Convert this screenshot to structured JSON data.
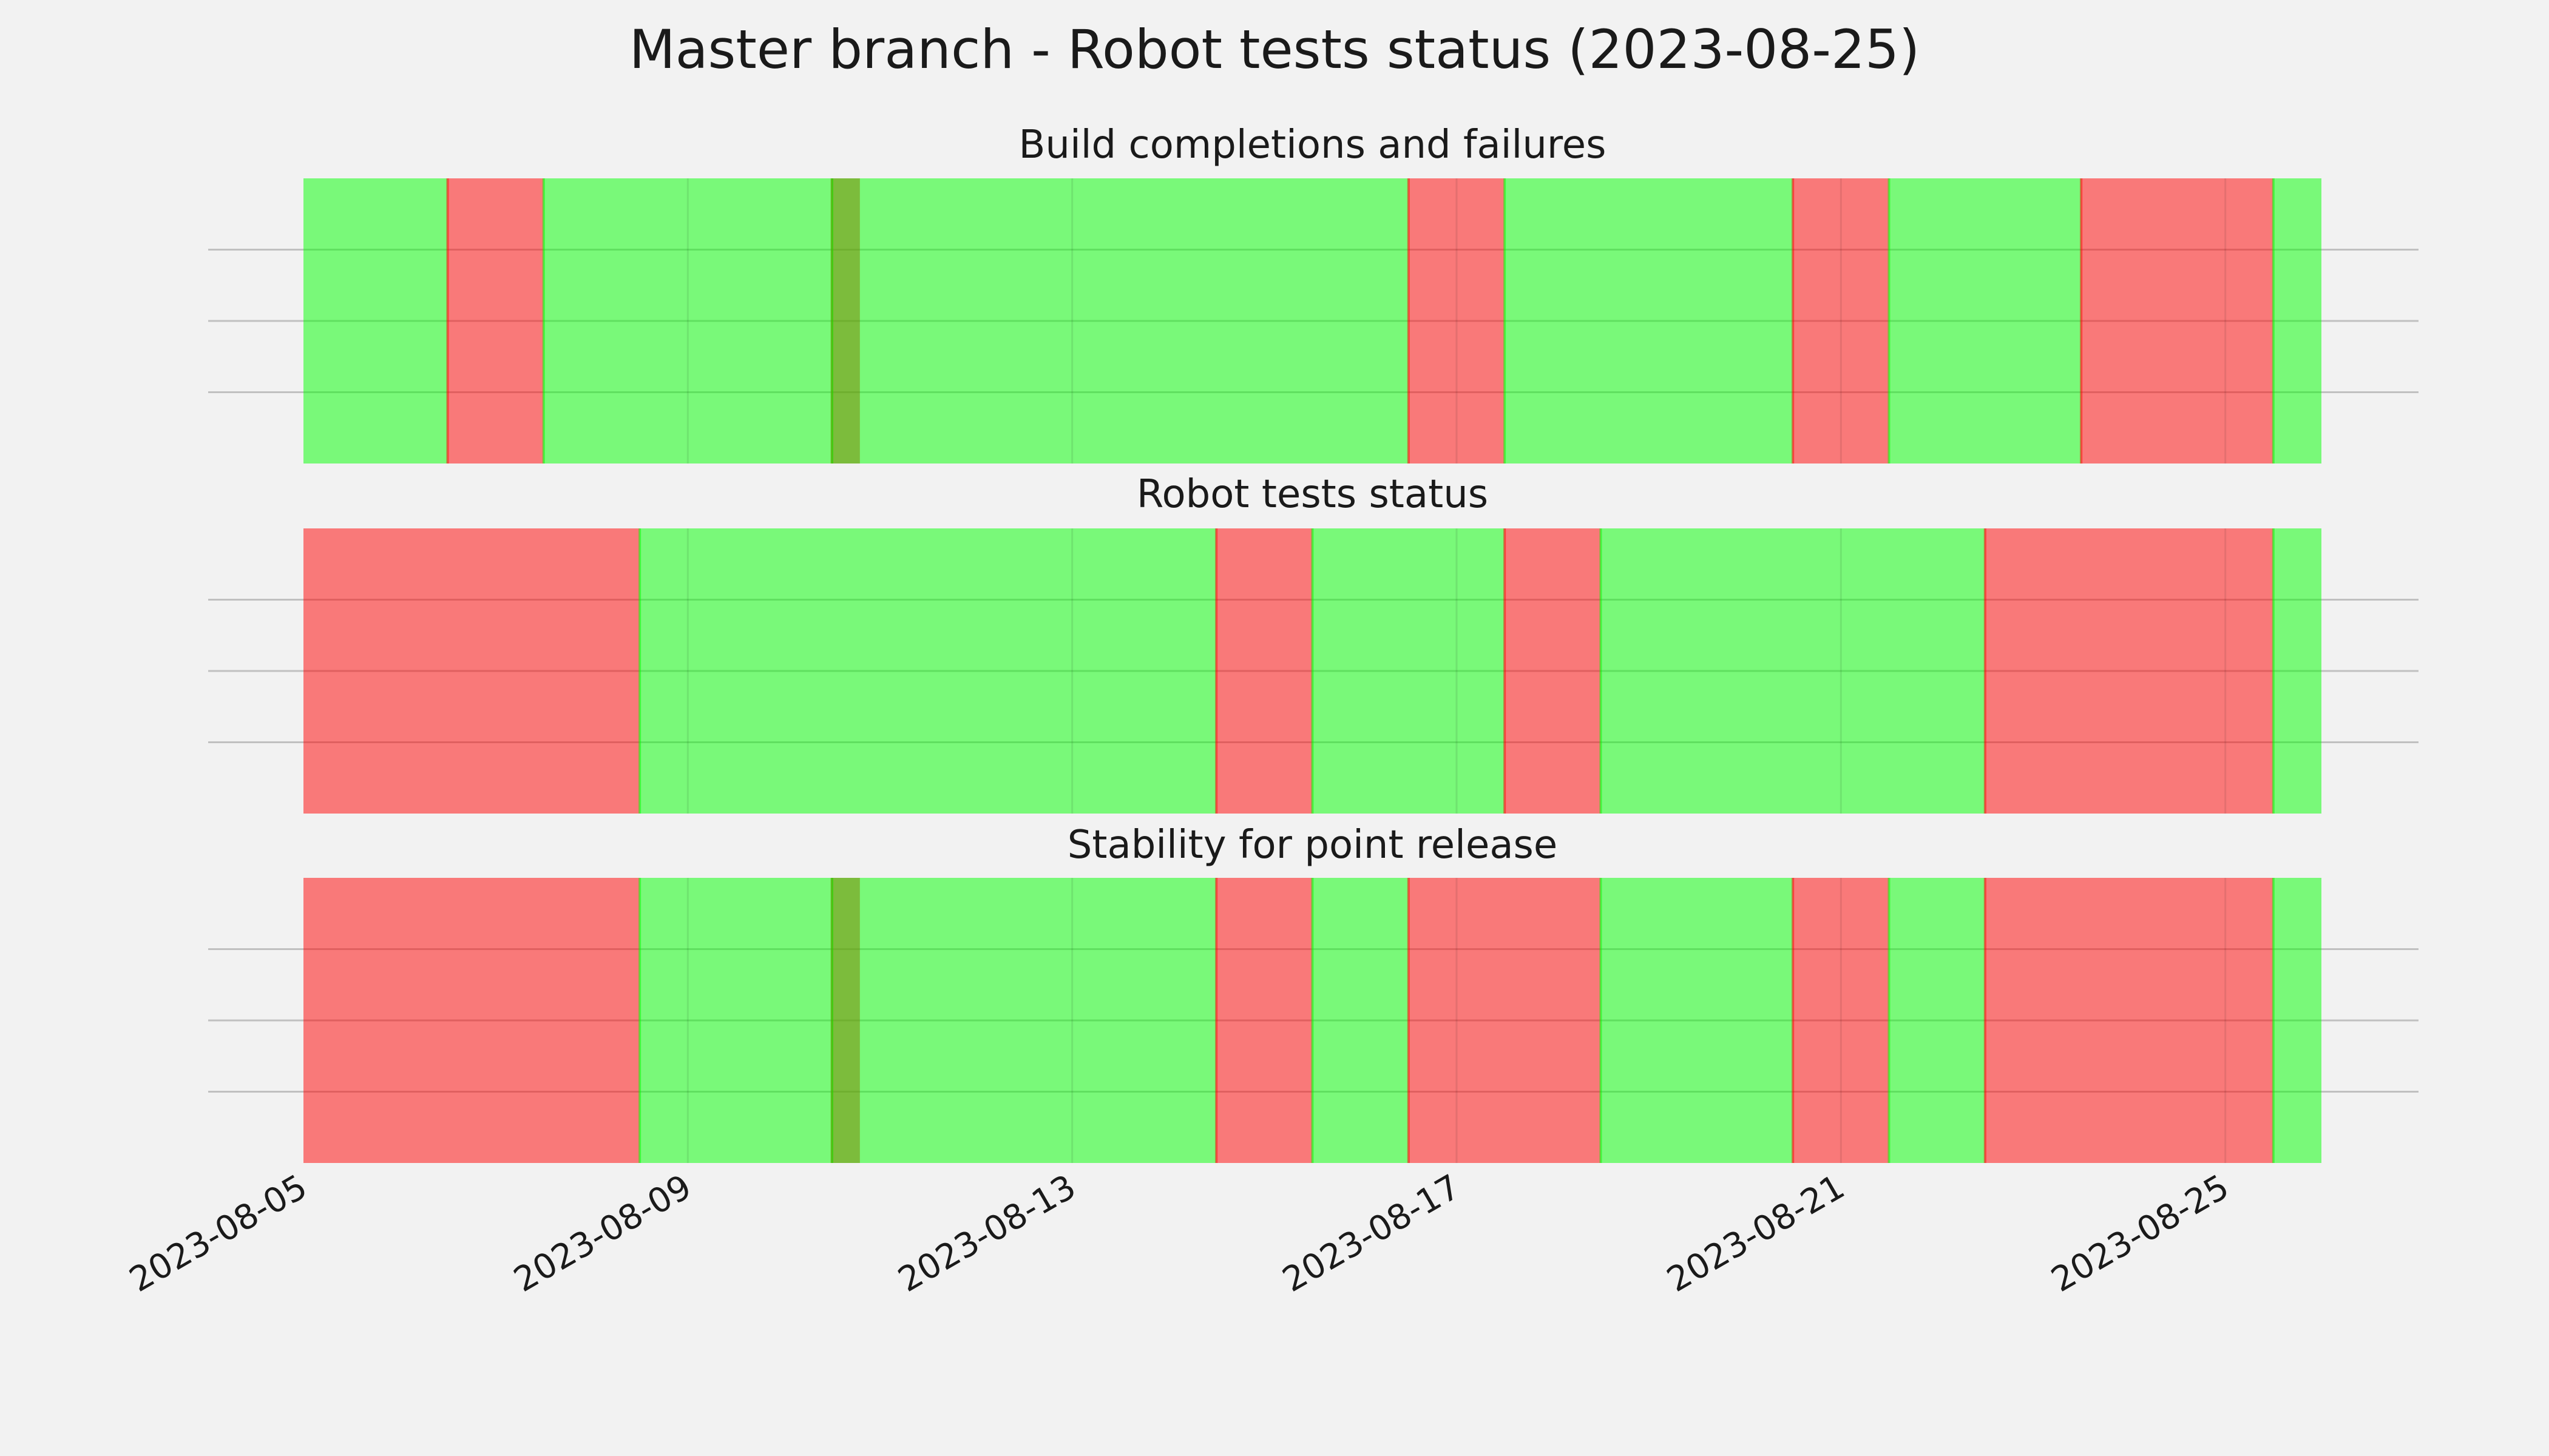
{
  "chart_data": {
    "type": "timeline",
    "title": "Master branch - Robot tests status (2023-08-25)",
    "colors": {
      "pass": "#00ff00",
      "fail": "#ff0000"
    },
    "x_range": [
      "2023-08-05",
      "2023-08-26"
    ],
    "x_ticks": [
      "2023-08-05",
      "2023-08-09",
      "2023-08-13",
      "2023-08-17",
      "2023-08-21",
      "2023-08-25"
    ],
    "grid": true,
    "panels": [
      {
        "title": "Build completions and failures",
        "segments": [
          {
            "start": "2023-08-05",
            "end": "2023-08-06",
            "status": "pass"
          },
          {
            "start": "2023-08-06",
            "end": "2023-08-07",
            "status": "fail"
          },
          {
            "start": "2023-08-07",
            "end": "2023-08-10",
            "status": "pass"
          },
          {
            "start": "2023-08-10",
            "end": "2023-08-10",
            "status": "fail"
          },
          {
            "start": "2023-08-10",
            "end": "2023-08-16",
            "status": "pass"
          },
          {
            "start": "2023-08-16",
            "end": "2023-08-17",
            "status": "fail"
          },
          {
            "start": "2023-08-17",
            "end": "2023-08-20",
            "status": "pass"
          },
          {
            "start": "2023-08-20",
            "end": "2023-08-21",
            "status": "fail"
          },
          {
            "start": "2023-08-21",
            "end": "2023-08-23",
            "status": "pass"
          },
          {
            "start": "2023-08-23",
            "end": "2023-08-25",
            "status": "fail"
          },
          {
            "start": "2023-08-25",
            "end": "2023-08-26",
            "status": "pass"
          }
        ]
      },
      {
        "title": "Robot tests status",
        "segments": [
          {
            "start": "2023-08-05",
            "end": "2023-08-08",
            "status": "fail"
          },
          {
            "start": "2023-08-08",
            "end": "2023-08-14",
            "status": "pass"
          },
          {
            "start": "2023-08-14",
            "end": "2023-08-15",
            "status": "fail"
          },
          {
            "start": "2023-08-15",
            "end": "2023-08-17",
            "status": "pass"
          },
          {
            "start": "2023-08-17",
            "end": "2023-08-18",
            "status": "fail"
          },
          {
            "start": "2023-08-18",
            "end": "2023-08-22",
            "status": "pass"
          },
          {
            "start": "2023-08-22",
            "end": "2023-08-25",
            "status": "fail"
          },
          {
            "start": "2023-08-25",
            "end": "2023-08-26",
            "status": "pass"
          }
        ]
      },
      {
        "title": "Stability for point release",
        "segments": [
          {
            "start": "2023-08-05",
            "end": "2023-08-08",
            "status": "fail"
          },
          {
            "start": "2023-08-08",
            "end": "2023-08-10",
            "status": "pass"
          },
          {
            "start": "2023-08-10",
            "end": "2023-08-10",
            "status": "fail"
          },
          {
            "start": "2023-08-10",
            "end": "2023-08-14",
            "status": "pass"
          },
          {
            "start": "2023-08-14",
            "end": "2023-08-15",
            "status": "fail"
          },
          {
            "start": "2023-08-15",
            "end": "2023-08-16",
            "status": "pass"
          },
          {
            "start": "2023-08-16",
            "end": "2023-08-18",
            "status": "fail"
          },
          {
            "start": "2023-08-18",
            "end": "2023-08-20",
            "status": "pass"
          },
          {
            "start": "2023-08-20",
            "end": "2023-08-21",
            "status": "fail"
          },
          {
            "start": "2023-08-21",
            "end": "2023-08-22",
            "status": "pass"
          },
          {
            "start": "2023-08-22",
            "end": "2023-08-25",
            "status": "fail"
          },
          {
            "start": "2023-08-25",
            "end": "2023-08-26",
            "status": "pass"
          }
        ]
      }
    ]
  }
}
